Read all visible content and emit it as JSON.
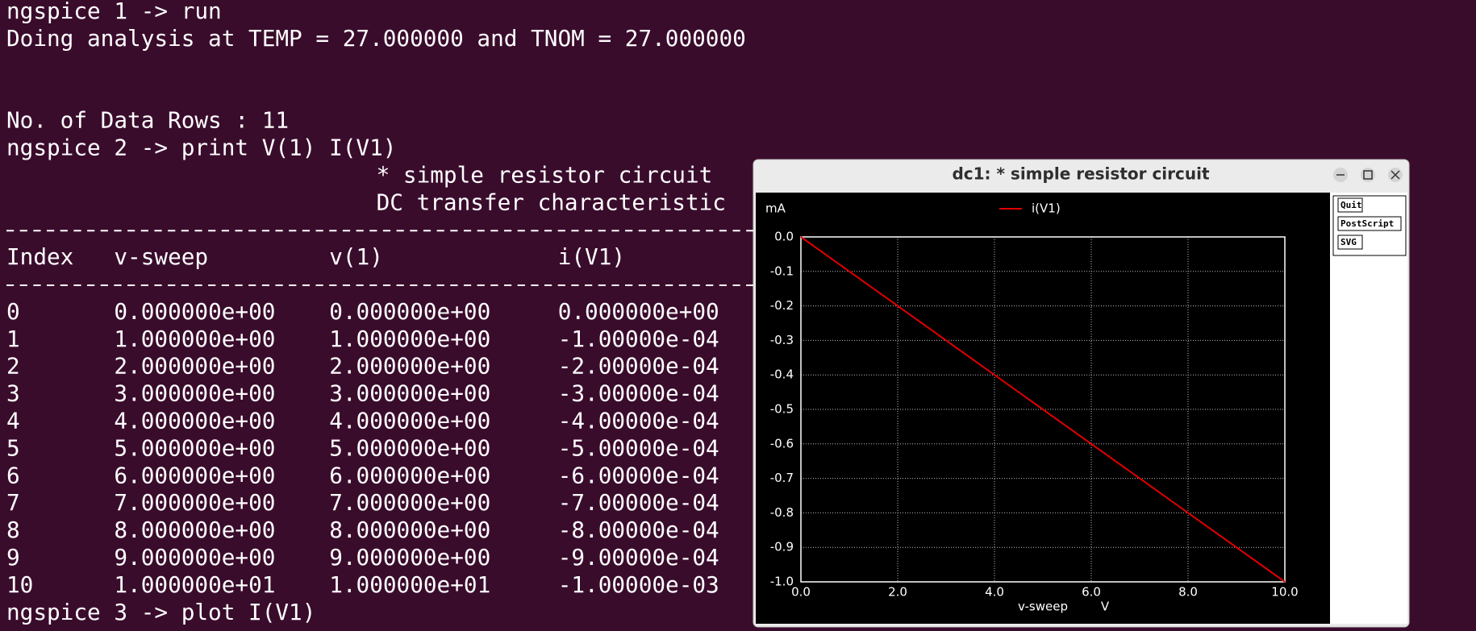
{
  "terminal": {
    "prompt1": "ngspice 1 -> run",
    "analysis": "Doing analysis at TEMP = 27.000000 and TNOM = 27.000000",
    "rows_info": "No. of Data Rows : 11",
    "prompt2": "ngspice 2 -> print V(1) I(V1)",
    "print_title": "* simple resistor circuit",
    "print_subtitle": "DC transfer characteristic",
    "columns": [
      "Index",
      "v-sweep",
      "v(1)",
      "i(V1)"
    ],
    "rows": [
      [
        "0",
        "0.000000e+00",
        "0.000000e+00",
        "0.000000e+00"
      ],
      [
        "1",
        "1.000000e+00",
        "1.000000e+00",
        "-1.00000e-04"
      ],
      [
        "2",
        "2.000000e+00",
        "2.000000e+00",
        "-2.00000e-04"
      ],
      [
        "3",
        "3.000000e+00",
        "3.000000e+00",
        "-3.00000e-04"
      ],
      [
        "4",
        "4.000000e+00",
        "4.000000e+00",
        "-4.00000e-04"
      ],
      [
        "5",
        "5.000000e+00",
        "5.000000e+00",
        "-5.00000e-04"
      ],
      [
        "6",
        "6.000000e+00",
        "6.000000e+00",
        "-6.00000e-04"
      ],
      [
        "7",
        "7.000000e+00",
        "7.000000e+00",
        "-7.00000e-04"
      ],
      [
        "8",
        "8.000000e+00",
        "8.000000e+00",
        "-8.00000e-04"
      ],
      [
        "9",
        "9.000000e+00",
        "9.000000e+00",
        "-9.00000e-04"
      ],
      [
        "10",
        "1.000000e+01",
        "1.000000e+01",
        "-1.00000e-03"
      ]
    ],
    "prompt3": "ngspice 3 -> plot I(V1)"
  },
  "plot_window": {
    "title": "dc1: * simple resistor circuit",
    "buttons": [
      "Quit",
      "PostScript",
      "SVG"
    ]
  },
  "chart_data": {
    "type": "line",
    "y_unit": "mA",
    "x_label": "v-sweep",
    "x_unit": "V",
    "x": [
      0,
      1,
      2,
      3,
      4,
      5,
      6,
      7,
      8,
      9,
      10
    ],
    "series": [
      {
        "name": "i(V1)",
        "color": "#e00000",
        "values": [
          0,
          -0.1,
          -0.2,
          -0.3,
          -0.4,
          -0.5,
          -0.6,
          -0.7,
          -0.8,
          -0.9,
          -1.0
        ]
      }
    ],
    "xlim": [
      0,
      10
    ],
    "xticks": [
      {
        "value": 0,
        "label": "0.0"
      },
      {
        "value": 2,
        "label": "2.0"
      },
      {
        "value": 4,
        "label": "4.0"
      },
      {
        "value": 6,
        "label": "6.0"
      },
      {
        "value": 8,
        "label": "8.0"
      },
      {
        "value": 10,
        "label": "10.0"
      }
    ],
    "ylim": [
      -1,
      0
    ],
    "yticks": [
      {
        "value": 0,
        "label": "0.0"
      },
      {
        "value": -0.1,
        "label": "-0.1"
      },
      {
        "value": -0.2,
        "label": "-0.2"
      },
      {
        "value": -0.3,
        "label": "-0.3"
      },
      {
        "value": -0.4,
        "label": "-0.4"
      },
      {
        "value": -0.5,
        "label": "-0.5"
      },
      {
        "value": -0.6,
        "label": "-0.6"
      },
      {
        "value": -0.7,
        "label": "-0.7"
      },
      {
        "value": -0.8,
        "label": "-0.8"
      },
      {
        "value": -0.9,
        "label": "-0.9"
      },
      {
        "value": -1,
        "label": "-1.0"
      }
    ],
    "grid": true
  }
}
